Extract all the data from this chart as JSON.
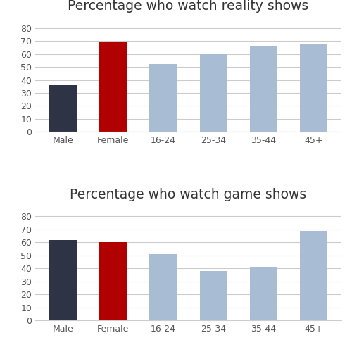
{
  "reality_title": "Percentage who watch reality shows",
  "game_title": "Percentage who watch game shows",
  "categories": [
    "Male",
    "Female",
    "16-24",
    "25-34",
    "35-44",
    "45+"
  ],
  "reality_values": [
    36,
    69,
    52,
    60,
    66,
    68
  ],
  "game_values": [
    62,
    60,
    51,
    38,
    41,
    69
  ],
  "colors": [
    "#2e3446",
    "#b00000",
    "#a8bdd4",
    "#a8bdd4",
    "#a8bdd4",
    "#a8bdd4"
  ],
  "ylim": [
    0,
    88
  ],
  "yticks": [
    0,
    10,
    20,
    30,
    40,
    50,
    60,
    70,
    80
  ],
  "background_color": "#ffffff",
  "grid_color": "#cccccc",
  "title_fontsize": 13.5,
  "bar_width": 0.55
}
